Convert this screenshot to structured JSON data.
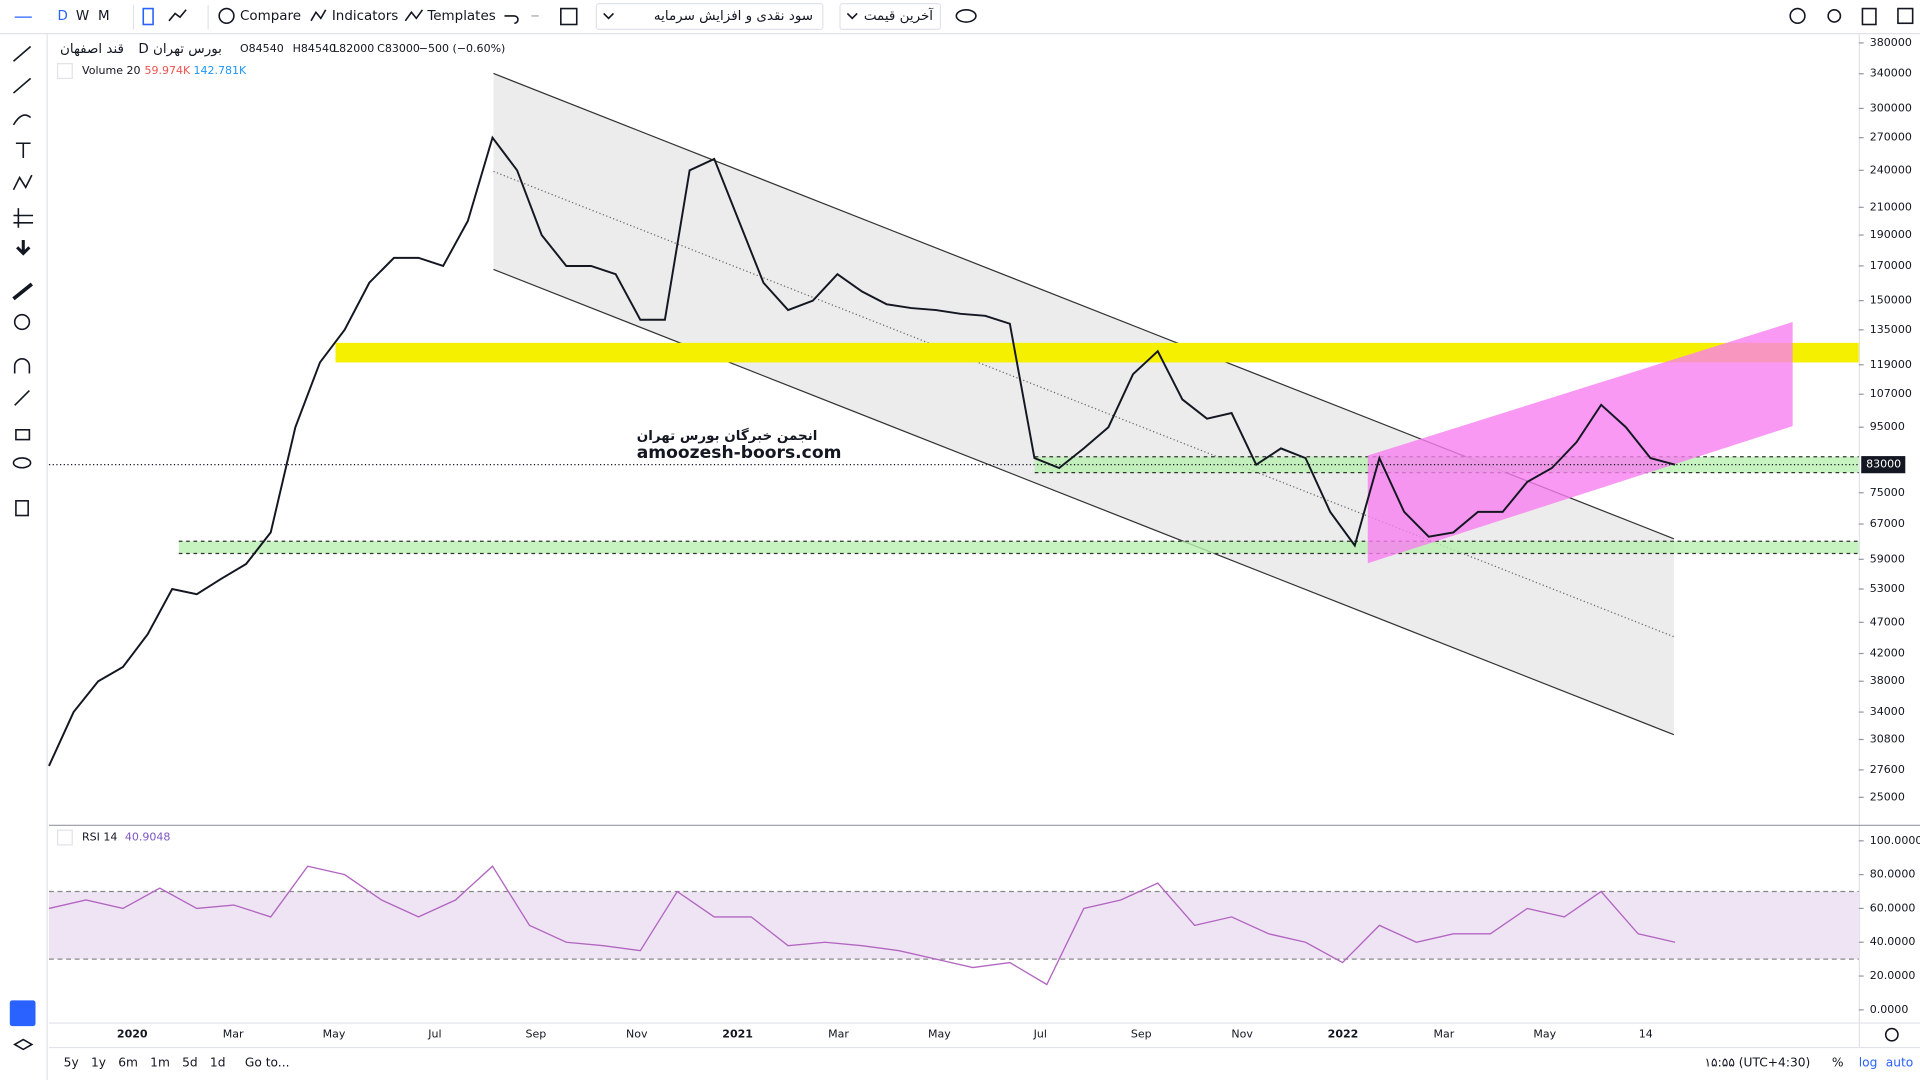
{
  "toolbar": {
    "intervals": [
      "D",
      "W",
      "M"
    ],
    "compare": "Compare",
    "indicators": "Indicators",
    "templates": "Templates",
    "dividends": "سود نقدی و افزایش سرمایه",
    "price_source": "آخرین قیمت"
  },
  "legend": {
    "symbol": "قند اصفهان",
    "interval": "D",
    "exchange": "بورس تهران",
    "ohlc": [
      "O84540",
      "H84540",
      "L82000",
      "C83000"
    ],
    "change": "−500 (−0.60%)",
    "volume_label": "Volume 20",
    "volume_value": "59.974K",
    "volume_ma": "142.781K",
    "rsi_label": "RSI 14",
    "rsi_value": "40.9048"
  },
  "watermark": {
    "line1": "انجمن خبرگان بورس تهران",
    "line2": "amoozesh-boors.com"
  },
  "time_axis": {
    "labels": [
      "2020",
      "Mar",
      "May",
      "Jul",
      "Sep",
      "Nov",
      "2021",
      "Mar",
      "May",
      "Jul",
      "Sep",
      "Nov",
      "2022",
      "Mar",
      "May",
      "14"
    ]
  },
  "bottom_bar": {
    "ranges": [
      "5y",
      "1y",
      "6m",
      "1m",
      "5d",
      "1d"
    ],
    "goto": "Go to...",
    "clock": "۱۵:۵۵ (UTC+4:30)",
    "scale_options": [
      "%",
      "log",
      "auto"
    ]
  },
  "chart_data": [
    {
      "type": "line",
      "log": true,
      "color": "#131722",
      "ylim": [
        22700,
        392000
      ],
      "yticks": [
        380000,
        340000,
        300000,
        270000,
        240000,
        210000,
        190000,
        170000,
        150000,
        135000,
        119000,
        107000,
        95000,
        75000,
        67000,
        59000,
        53000,
        47000,
        42000,
        38000,
        34000,
        30800,
        27600,
        25000
      ],
      "last_value": 83000,
      "values": [
        28000,
        34000,
        38000,
        40000,
        45000,
        53000,
        52000,
        55000,
        58000,
        65000,
        95000,
        120000,
        135000,
        160000,
        175000,
        175000,
        170000,
        200000,
        270000,
        240000,
        190000,
        170000,
        170000,
        165000,
        140000,
        140000,
        240000,
        250000,
        200000,
        160000,
        145000,
        150000,
        165000,
        155000,
        148000,
        146000,
        145000,
        143000,
        142000,
        138000,
        85000,
        82000,
        88000,
        95000,
        115000,
        125000,
        105000,
        98000,
        100000,
        83000,
        88000,
        85000,
        70000,
        62000,
        85000,
        70000,
        64000,
        65000,
        70000,
        70000,
        78000,
        82000,
        90000,
        103000,
        95000,
        85000,
        83000
      ]
    },
    {
      "type": "line",
      "color": "#b266c2",
      "ylim": [
        -6,
        107
      ],
      "yticks": [
        {
          "value": 100,
          "label": "100.0000"
        },
        {
          "value": 80,
          "label": "80.0000"
        },
        {
          "value": 60,
          "label": "60.0000"
        },
        {
          "value": 40,
          "label": "40.0000"
        },
        {
          "value": 20,
          "label": "20.0000"
        },
        {
          "value": 0,
          "label": "0.0000"
        }
      ],
      "band": [
        30,
        70
      ],
      "values": [
        60,
        65,
        60,
        72,
        60,
        62,
        55,
        85,
        80,
        65,
        55,
        65,
        85,
        50,
        40,
        38,
        35,
        70,
        55,
        55,
        38,
        40,
        38,
        35,
        30,
        25,
        28,
        15,
        60,
        65,
        75,
        50,
        55,
        45,
        40,
        28,
        50,
        40,
        45,
        45,
        60,
        55,
        70,
        45,
        40
      ]
    }
  ]
}
